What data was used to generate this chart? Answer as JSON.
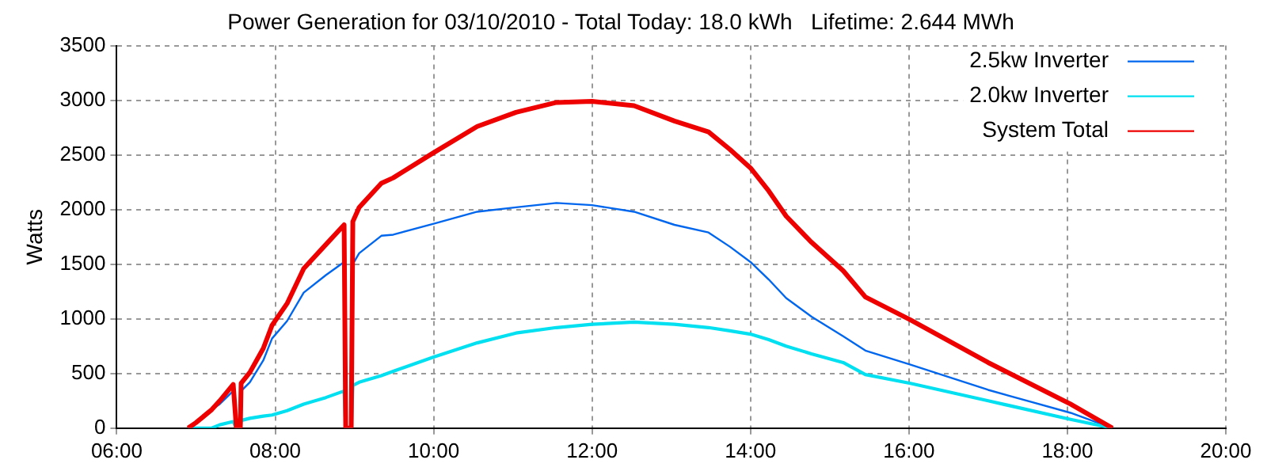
{
  "chart_data": {
    "type": "line",
    "title": "Power Generation for 03/10/2010 - Total Today: 18.0 kWh   Lifetime: 2.644 MWh",
    "ylabel": "Watts",
    "x": [
      6.9,
      7.0,
      7.2,
      7.3,
      7.47,
      7.51,
      7.56,
      7.57,
      7.68,
      7.85,
      7.96,
      8.15,
      8.36,
      8.64,
      8.87,
      8.89,
      8.96,
      8.98,
      9.06,
      9.34,
      9.49,
      10.0,
      10.55,
      11.04,
      11.55,
      12.0,
      12.53,
      13.04,
      13.47,
      13.74,
      14.0,
      14.23,
      14.45,
      14.77,
      15.17,
      15.45,
      16.02,
      17.0,
      18.04,
      18.57
    ],
    "series": [
      {
        "name": "2.5kw Inverter",
        "color": "#0066ee",
        "values": [
          0,
          50,
          170,
          220,
          340,
          0,
          0,
          340,
          420,
          620,
          820,
          980,
          1240,
          1400,
          1520,
          0,
          0,
          1500,
          1600,
          1760,
          1770,
          1870,
          1980,
          2020,
          2060,
          2040,
          1980,
          1860,
          1790,
          1660,
          1520,
          1360,
          1190,
          1020,
          840,
          710,
          580,
          350,
          140,
          0
        ]
      },
      {
        "name": "2.0kw Inverter",
        "color": "#00e0f0",
        "values": [
          0,
          0,
          0,
          30,
          60,
          0,
          0,
          70,
          90,
          110,
          120,
          160,
          220,
          280,
          340,
          0,
          0,
          390,
          420,
          480,
          520,
          650,
          780,
          870,
          920,
          950,
          970,
          950,
          920,
          890,
          860,
          810,
          750,
          680,
          600,
          490,
          410,
          250,
          80,
          0
        ]
      },
      {
        "name": "System Total",
        "color": "#ee0000",
        "values": [
          0,
          50,
          170,
          250,
          400,
          0,
          0,
          410,
          510,
          730,
          940,
          1140,
          1460,
          1680,
          1860,
          0,
          0,
          1890,
          2020,
          2240,
          2290,
          2520,
          2760,
          2890,
          2980,
          2990,
          2950,
          2810,
          2710,
          2550,
          2380,
          2170,
          1940,
          1700,
          1440,
          1200,
          990,
          600,
          220,
          0
        ]
      }
    ],
    "xlim": [
      6,
      20
    ],
    "xticks": [
      {
        "value": 6,
        "label": "06:00"
      },
      {
        "value": 8,
        "label": "08:00"
      },
      {
        "value": 10,
        "label": "10:00"
      },
      {
        "value": 12,
        "label": "12:00"
      },
      {
        "value": 14,
        "label": "14:00"
      },
      {
        "value": 16,
        "label": "16:00"
      },
      {
        "value": 18,
        "label": "18:00"
      },
      {
        "value": 20,
        "label": "20:00"
      }
    ],
    "ylim": [
      0,
      3500
    ],
    "yticks": [
      0,
      500,
      1000,
      1500,
      2000,
      2500,
      3000,
      3500
    ],
    "grid": true,
    "legend": "top right"
  }
}
